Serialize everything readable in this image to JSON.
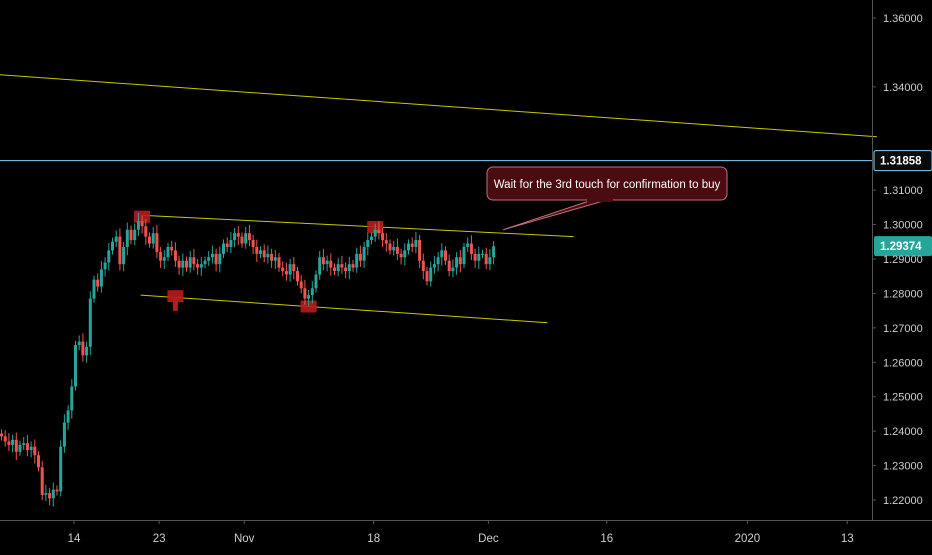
{
  "chart_data": {
    "type": "candlestick",
    "title": "",
    "ylim": [
      1.2145,
      1.3655
    ],
    "y_ticks": [
      "1.36000",
      "1.34000",
      "1.31000",
      "1.30000",
      "1.29000",
      "1.28000",
      "1.27000",
      "1.26000",
      "1.25000",
      "1.24000",
      "1.23000",
      "1.22000"
    ],
    "y_tick_values": [
      1.36,
      1.34,
      1.31,
      1.3,
      1.29,
      1.28,
      1.27,
      1.26,
      1.25,
      1.24,
      1.23,
      1.22
    ],
    "x_ticks": [
      "14",
      "23",
      "Nov",
      "18",
      "Dec",
      "16",
      "2020",
      "13"
    ],
    "x_tick_index": [
      20,
      43,
      66,
      101,
      132,
      164,
      202,
      229
    ],
    "x_range": [
      0,
      237
    ],
    "horizontal_level": {
      "label": "1.31858",
      "value": 1.31858,
      "color": "#87cefa"
    },
    "last_price": {
      "label": "1.29374",
      "value": 1.29374,
      "color": "#26a69a"
    },
    "trendlines": [
      {
        "name": "long-trendline",
        "from": [
          0,
          1.3435
        ],
        "to": [
          237,
          1.3255
        ],
        "color": "#c8c800"
      },
      {
        "name": "channel-top",
        "from": [
          38,
          1.3027
        ],
        "to": [
          155,
          1.2965
        ],
        "color": "#c8c800"
      },
      {
        "name": "channel-bottom",
        "from": [
          38,
          1.2795
        ],
        "to": [
          148,
          1.2715
        ],
        "color": "#c8c800"
      }
    ],
    "touch_markers": [
      {
        "x": 38,
        "y": 1.3023
      },
      {
        "x": 47,
        "y": 1.2792
      },
      {
        "x": 83,
        "y": 1.2762
      },
      {
        "x": 101,
        "y": 1.2993
      }
    ],
    "callout": {
      "text": "Wait for the 3rd touch for confirmation to buy",
      "anchor": [
        136,
        1.2985
      ],
      "color": "#4a0c10",
      "border": "#c0707a"
    },
    "colors": {
      "up": "#26a69a",
      "down": "#ef5350",
      "background": "#000000",
      "axis": "#555555"
    },
    "candles_close": [
      1.2385,
      1.237,
      1.236,
      1.2375,
      1.234,
      1.236,
      1.2365,
      1.2345,
      1.2355,
      1.233,
      1.2295,
      1.2215,
      1.222,
      1.2205,
      1.223,
      1.2225,
      1.2355,
      1.2425,
      1.246,
      1.253,
      1.265,
      1.266,
      1.262,
      1.2645,
      1.2785,
      1.284,
      1.282,
      1.287,
      1.289,
      1.2925,
      1.295,
      1.2965,
      1.2885,
      1.2935,
      1.2985,
      1.2955,
      1.2985,
      1.301,
      1.2995,
      1.2965,
      1.2945,
      1.2975,
      1.292,
      1.2895,
      1.2905,
      1.2935,
      1.2925,
      1.2895,
      1.2875,
      1.2895,
      1.2875,
      1.2905,
      1.2885,
      1.2875,
      1.2885,
      1.2895,
      1.2905,
      1.2915,
      1.2885,
      1.2915,
      1.2945,
      1.2935,
      1.2955,
      1.2975,
      1.2965,
      1.2945,
      1.2975,
      1.2955,
      1.2935,
      1.2915,
      1.2925,
      1.2905,
      1.2915,
      1.2895,
      1.2905,
      1.2875,
      1.2865,
      1.2855,
      1.2885,
      1.2865,
      1.2835,
      1.2815,
      1.2785,
      1.2795,
      1.2815,
      1.2855,
      1.2905,
      1.2885,
      1.2895,
      1.2875,
      1.2865,
      1.2885,
      1.2875,
      1.2865,
      1.2885,
      1.2875,
      1.2915,
      1.2895,
      1.2935,
      1.2955,
      1.2965,
      1.2985,
      1.2975,
      1.2955,
      1.2945,
      1.2925,
      1.2935,
      1.2915,
      1.2905,
      1.2925,
      1.2945,
      1.2935,
      1.2955,
      1.2895,
      1.2865,
      1.2835,
      1.2875,
      1.2885,
      1.2905,
      1.2925,
      1.2895,
      1.2865,
      1.2875,
      1.2905,
      1.2885,
      1.2935,
      1.2945,
      1.2915,
      1.2895,
      1.2915,
      1.2915,
      1.2885,
      1.2905,
      1.2937
    ]
  }
}
